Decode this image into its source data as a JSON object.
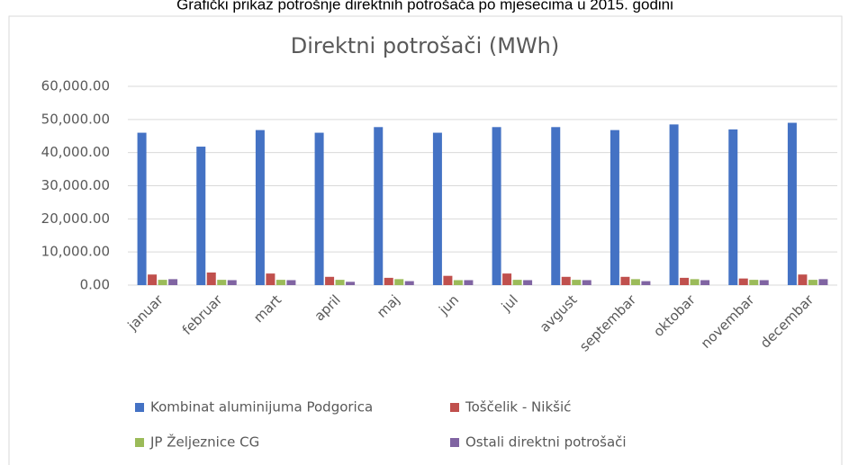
{
  "caption": "Grafički prikaz potrošnje direktnih potrošača po mjesecima u 2015. godini",
  "chart_data": {
    "type": "bar",
    "title": "Direktni potrošači (MWh)",
    "categories": [
      "januar",
      "februar",
      "mart",
      "april",
      "maj",
      "jun",
      "jul",
      "avgust",
      "septembar",
      "oktobar",
      "novembar",
      "decembar"
    ],
    "series": [
      {
        "name": "Kombinat aluminijuma Podgorica",
        "color": "#4472c4",
        "values": [
          46000,
          41800,
          46800,
          46000,
          47700,
          46000,
          47700,
          47700,
          46800,
          48500,
          47000,
          49000
        ]
      },
      {
        "name": "Toščelik - Nikšić",
        "color": "#c0504d",
        "values": [
          3200,
          3800,
          3500,
          2500,
          2200,
          2800,
          3500,
          2500,
          2500,
          2200,
          2000,
          3200
        ]
      },
      {
        "name": "JP Željeznice CG",
        "color": "#9bbb59",
        "values": [
          1600,
          1600,
          1600,
          1600,
          1800,
          1500,
          1600,
          1600,
          1800,
          1800,
          1600,
          1600
        ]
      },
      {
        "name": "Ostali direktni potrošači",
        "color": "#8064a2",
        "values": [
          1800,
          1500,
          1500,
          1000,
          1200,
          1500,
          1500,
          1500,
          1200,
          1500,
          1500,
          1800
        ]
      }
    ],
    "ylim": [
      0,
      60000
    ],
    "yticks": [
      {
        "value": 0,
        "label": "0.00"
      },
      {
        "value": 10000,
        "label": "10,000.00"
      },
      {
        "value": 20000,
        "label": "20,000.00"
      },
      {
        "value": 30000,
        "label": "30,000.00"
      },
      {
        "value": 40000,
        "label": "40,000.00"
      },
      {
        "value": 50000,
        "label": "50,000.00"
      },
      {
        "value": 60000,
        "label": "60,000.00"
      }
    ],
    "grid": true,
    "legend": "bottom"
  }
}
